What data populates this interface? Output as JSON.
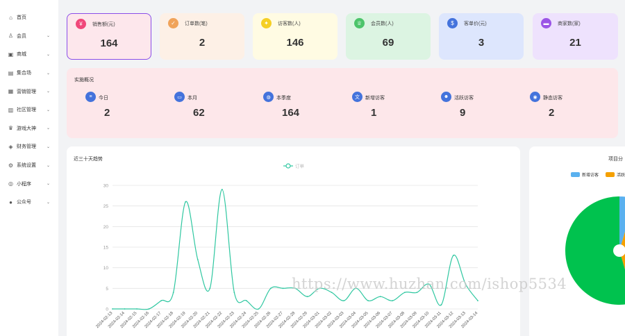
{
  "sidebar": {
    "items": [
      {
        "label": "首页",
        "icon": "home-icon",
        "glyph": "⌂",
        "has_children": false
      },
      {
        "label": "会员",
        "icon": "user-icon",
        "glyph": "♙",
        "has_children": true
      },
      {
        "label": "商城",
        "icon": "shop-icon",
        "glyph": "▣",
        "has_children": true
      },
      {
        "label": "集合场",
        "icon": "store-icon",
        "glyph": "▤",
        "has_children": true
      },
      {
        "label": "营销管理",
        "icon": "marketing-icon",
        "glyph": "▦",
        "has_children": true
      },
      {
        "label": "社区管理",
        "icon": "community-icon",
        "glyph": "▥",
        "has_children": true
      },
      {
        "label": "游戏大神",
        "icon": "game-icon",
        "glyph": "♛",
        "has_children": true
      },
      {
        "label": "财务管理",
        "icon": "finance-icon",
        "glyph": "◈",
        "has_children": true
      },
      {
        "label": "系统设置",
        "icon": "settings-icon",
        "glyph": "⚙",
        "has_children": true
      },
      {
        "label": "小程序",
        "icon": "miniprogram-icon",
        "glyph": "◎",
        "has_children": true
      },
      {
        "label": "公众号",
        "icon": "wechat-icon",
        "glyph": "●",
        "has_children": true
      }
    ],
    "chevron": "⌄"
  },
  "stats": [
    {
      "label": "销售额(元)",
      "value": "164",
      "icon": "yen-icon",
      "glyph": "¥",
      "bg": "#fde7ec",
      "icon_bg": "#f0477a",
      "border": "#8a4de8"
    },
    {
      "label": "订单数(笔)",
      "value": "2",
      "icon": "order-icon",
      "glyph": "✓",
      "bg": "#fdf0e6",
      "icon_bg": "#f0a35a",
      "border": ""
    },
    {
      "label": "访客数(人)",
      "value": "146",
      "icon": "visitor-icon",
      "glyph": "✦",
      "bg": "#fffbe3",
      "icon_bg": "#f5cf24",
      "border": ""
    },
    {
      "label": "会员数(人)",
      "value": "69",
      "icon": "member-icon",
      "glyph": "♕",
      "bg": "#dcf4e2",
      "icon_bg": "#4cc46a",
      "border": ""
    },
    {
      "label": "客单价(元)",
      "value": "3",
      "icon": "money-bag-icon",
      "glyph": "$",
      "bg": "#dde6fd",
      "icon_bg": "#4473dc",
      "border": ""
    },
    {
      "label": "商家数(家)",
      "value": "21",
      "icon": "merchant-icon",
      "glyph": "▬",
      "bg": "#eee2fd",
      "icon_bg": "#9b55e6",
      "border": ""
    }
  ],
  "overview": {
    "title": "实施概况",
    "items": [
      {
        "label": "今日",
        "value": "2",
        "icon": "database-icon",
        "glyph": "≡"
      },
      {
        "label": "本月",
        "value": "62",
        "icon": "calendar-icon",
        "glyph": "▭"
      },
      {
        "label": "本季度",
        "value": "164",
        "icon": "chat-icon",
        "glyph": "◍"
      },
      {
        "label": "新增访客",
        "value": "1",
        "icon": "translate-icon",
        "glyph": "文"
      },
      {
        "label": "活跃访客",
        "value": "9",
        "icon": "people-icon",
        "glyph": "☻"
      },
      {
        "label": "静态访客",
        "value": "2",
        "icon": "camera-icon",
        "glyph": "◉"
      }
    ]
  },
  "trend_panel": {
    "title": "近三十天趋势"
  },
  "pie_panel": {
    "title": "项目分",
    "legend": [
      {
        "label": "新增访客",
        "color": "#5ab1ef"
      },
      {
        "label": "活跃",
        "color": "#f5a000"
      }
    ]
  },
  "watermark": "https://www.huzhan.com/ishop5534",
  "chart_data": [
    {
      "type": "line",
      "title": "近三十天趋势",
      "xlabel": "",
      "ylabel": "",
      "ylim": [
        0,
        30
      ],
      "yticks": [
        0,
        5,
        10,
        15,
        20,
        25,
        30
      ],
      "grid": true,
      "legend_position": "top-center",
      "series": [
        {
          "name": "订单",
          "color": "#2ec7a0",
          "x": [
            "2024-02-13",
            "2024-02-14",
            "2024-02-15",
            "2024-02-16",
            "2024-02-17",
            "2024-02-18",
            "2024-02-19",
            "2024-02-20",
            "2024-02-21",
            "2024-02-22",
            "2024-02-23",
            "2024-02-24",
            "2024-02-25",
            "2024-02-26",
            "2024-02-27",
            "2024-02-28",
            "2024-02-29",
            "2024-03-01",
            "2024-03-02",
            "2024-03-03",
            "2024-03-04",
            "2024-03-05",
            "2024-03-06",
            "2024-03-07",
            "2024-03-08",
            "2024-03-09",
            "2024-03-10",
            "2024-03-11",
            "2024-03-12",
            "2024-03-13",
            "2024-03-14"
          ],
          "values": [
            0,
            0,
            0,
            0,
            2,
            4,
            26,
            12,
            5,
            29,
            4,
            2,
            0,
            5,
            5,
            5,
            3,
            5,
            4,
            2,
            5,
            2,
            3,
            2,
            4,
            4,
            6,
            1,
            13,
            6,
            2
          ]
        }
      ]
    },
    {
      "type": "pie",
      "title": "项目分",
      "legend_position": "top",
      "slices": [
        {
          "name": "新增访客",
          "value": 1,
          "color": "#5ab1ef"
        },
        {
          "name": "活跃",
          "value": 9,
          "color": "#f5a000"
        },
        {
          "name": "",
          "value": 12,
          "color": "#00c24e"
        }
      ]
    }
  ]
}
